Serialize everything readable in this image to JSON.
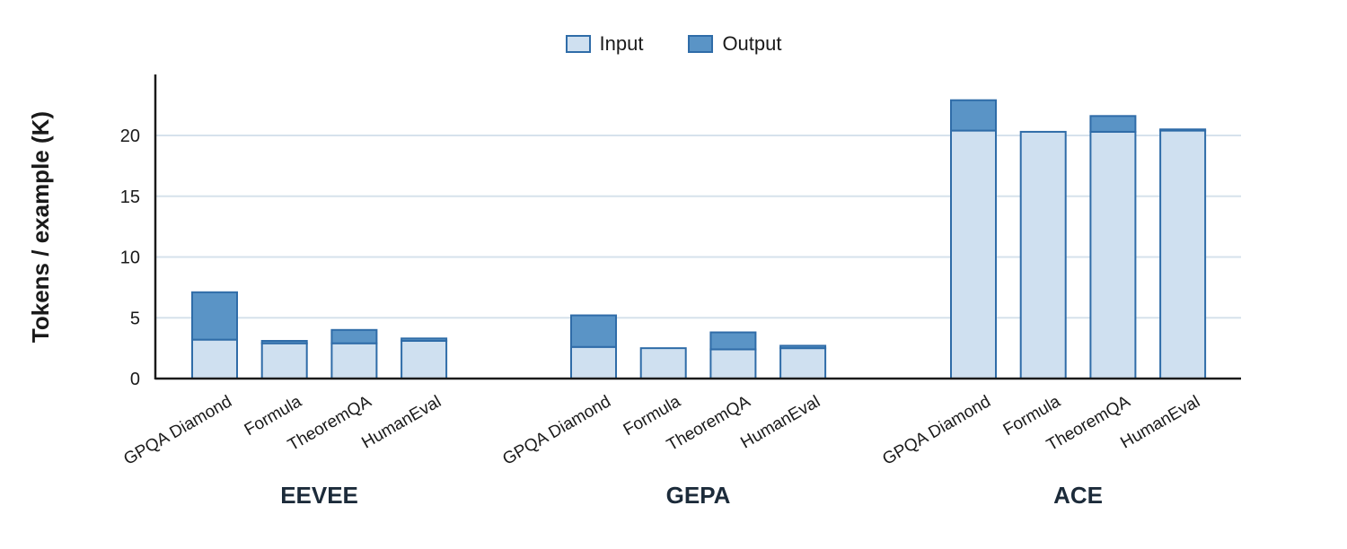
{
  "chart_data": {
    "type": "bar",
    "stacked": true,
    "ylabel": "Tokens / example (K)",
    "ylim": [
      0,
      24.8
    ],
    "yticks": [
      0,
      5,
      10,
      15,
      20
    ],
    "grid": true,
    "legend_position": "top-center",
    "colors": {
      "input_fill": "#cfe0f0",
      "output_fill": "#5a94c6",
      "stroke": "#2f6ca8",
      "grid": "#d6e2ec"
    },
    "groups": [
      {
        "name": "EEVEE",
        "categories": [
          "GPQA Diamond",
          "Formula",
          "TheoremQA",
          "HumanEval"
        ]
      },
      {
        "name": "GEPA",
        "categories": [
          "GPQA Diamond",
          "Formula",
          "TheoremQA",
          "HumanEval"
        ]
      },
      {
        "name": "ACE",
        "categories": [
          "GPQA Diamond",
          "Formula",
          "TheoremQA",
          "HumanEval"
        ]
      }
    ],
    "series": [
      {
        "name": "Input",
        "values": [
          3.2,
          2.9,
          2.9,
          3.1,
          2.6,
          2.5,
          2.4,
          2.5,
          20.4,
          20.3,
          20.3,
          20.4
        ]
      },
      {
        "name": "Output",
        "values": [
          3.9,
          0.2,
          1.1,
          0.2,
          2.6,
          0.0,
          1.4,
          0.2,
          2.5,
          0.0,
          1.3,
          0.1
        ]
      }
    ]
  }
}
